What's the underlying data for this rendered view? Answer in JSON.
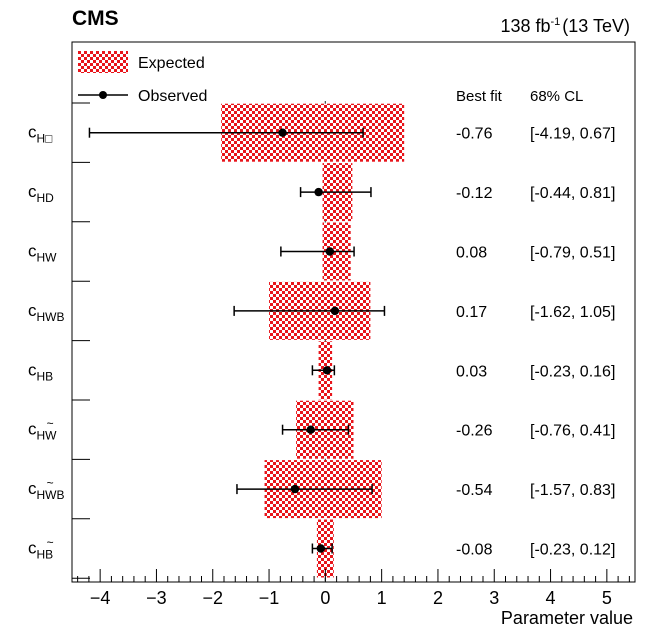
{
  "header": {
    "experiment": "CMS",
    "lumi_value": "138 fb",
    "lumi_exp": "-1",
    "energy": "(13 TeV)"
  },
  "legend": {
    "expected": "Expected",
    "observed": "Observed"
  },
  "columns": {
    "bestfit": "Best fit",
    "cl": "68% CL"
  },
  "colors": {
    "expected_fill": "#e8151b",
    "observed_marker": "#000000",
    "zero_line": "#555555"
  },
  "chart_data": {
    "type": "scatter",
    "orientation": "horizontal-intervals",
    "xlabel": "Parameter value",
    "xlim": [
      -4.5,
      5.5
    ],
    "xticks": [
      -4,
      -3,
      -2,
      -1,
      0,
      1,
      2,
      3,
      4,
      5
    ],
    "parameters": [
      {
        "base": "c",
        "sub": "H□",
        "tilde": "",
        "label": "cH□",
        "bestfit": -0.76,
        "obs_lo": -4.19,
        "obs_hi": 0.67,
        "bestfit_text": "-0.76",
        "cl_text": "[-4.19, 0.67]",
        "exp_lo": -1.85,
        "exp_hi": 1.4
      },
      {
        "base": "c",
        "sub": "HD",
        "tilde": "",
        "label": "cHD",
        "bestfit": -0.12,
        "obs_lo": -0.44,
        "obs_hi": 0.81,
        "bestfit_text": "-0.12",
        "cl_text": "[-0.44, 0.81]",
        "exp_lo": -0.05,
        "exp_hi": 0.48
      },
      {
        "base": "c",
        "sub": "HW",
        "tilde": "",
        "label": "cHW",
        "bestfit": 0.08,
        "obs_lo": -0.79,
        "obs_hi": 0.51,
        "bestfit_text": "0.08",
        "cl_text": "[-0.79, 0.51]",
        "exp_lo": -0.05,
        "exp_hi": 0.45
      },
      {
        "base": "c",
        "sub": "HWB",
        "tilde": "",
        "label": "cHWB",
        "bestfit": 0.17,
        "obs_lo": -1.62,
        "obs_hi": 1.05,
        "bestfit_text": "0.17",
        "cl_text": "[-1.62, 1.05]",
        "exp_lo": -1.0,
        "exp_hi": 0.8
      },
      {
        "base": "c",
        "sub": "HB",
        "tilde": "",
        "label": "cHB",
        "bestfit": 0.03,
        "obs_lo": -0.23,
        "obs_hi": 0.16,
        "bestfit_text": "0.03",
        "cl_text": "[-0.23, 0.16]",
        "exp_lo": -0.12,
        "exp_hi": 0.12
      },
      {
        "base": "c",
        "sub": "HW",
        "tilde": "W",
        "label": "cHW̃",
        "bestfit": -0.26,
        "obs_lo": -0.76,
        "obs_hi": 0.41,
        "bestfit_text": "-0.26",
        "cl_text": "[-0.76, 0.41]",
        "exp_lo": -0.52,
        "exp_hi": 0.5
      },
      {
        "base": "c",
        "sub": "HWB",
        "tilde": "W",
        "label": "cHW̃B",
        "bestfit": -0.54,
        "obs_lo": -1.57,
        "obs_hi": 0.83,
        "bestfit_text": "-0.54",
        "cl_text": "[-1.57, 0.83]",
        "exp_lo": -1.08,
        "exp_hi": 1.0
      },
      {
        "base": "c",
        "sub": "HB",
        "tilde": "B",
        "label": "cHB̃",
        "bestfit": -0.08,
        "obs_lo": -0.23,
        "obs_hi": 0.12,
        "bestfit_text": "-0.08",
        "cl_text": "[-0.23, 0.12]",
        "exp_lo": -0.15,
        "exp_hi": 0.15
      }
    ]
  }
}
